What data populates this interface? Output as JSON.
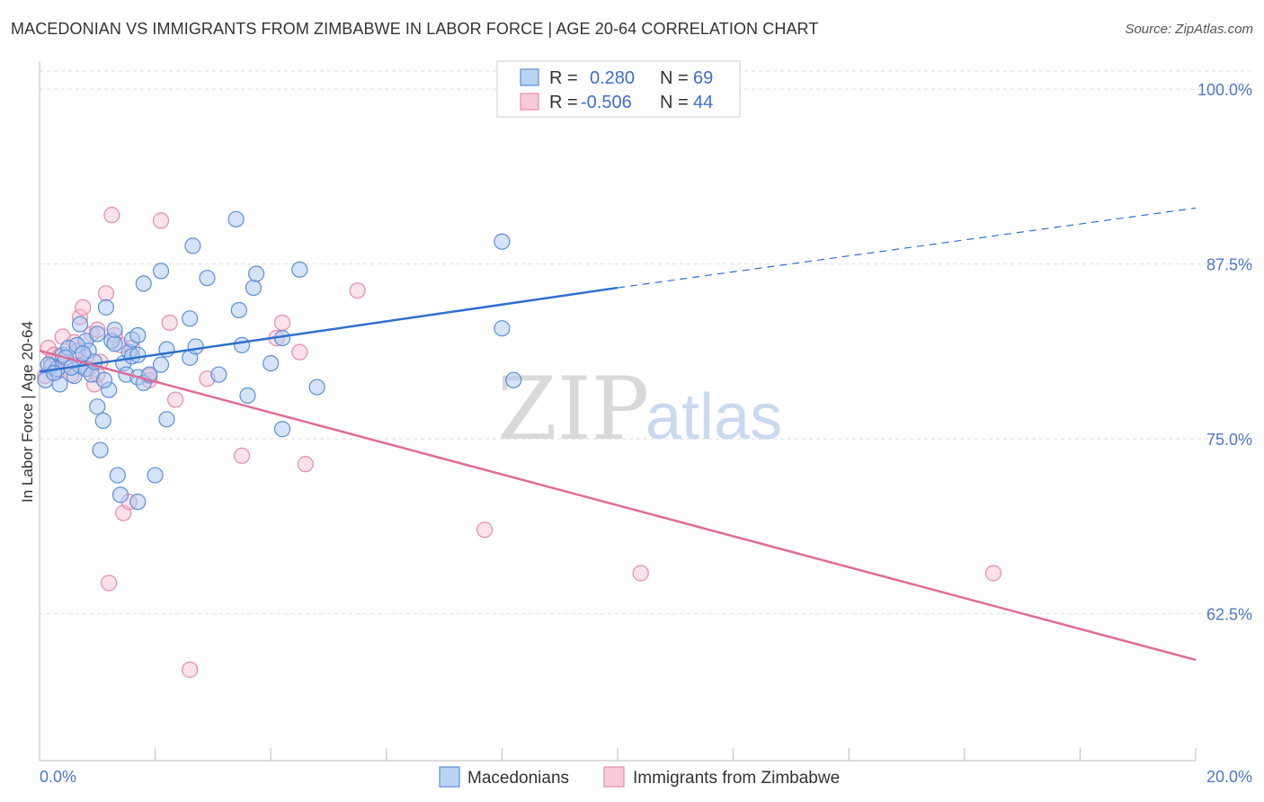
{
  "title": "MACEDONIAN VS IMMIGRANTS FROM ZIMBABWE IN LABOR FORCE | AGE 20-64 CORRELATION CHART",
  "source": "Source: ZipAtlas.com",
  "watermark": {
    "zip": "ZIP",
    "atlas": "atlas"
  },
  "colors": {
    "macedonians_fill": "#a9c8f0",
    "macedonians_stroke": "#5b8fd8",
    "macedonians_line": "#2f6fd0",
    "zimbabwe_fill": "#f5bdd0",
    "zimbabwe_stroke": "#e88aaa",
    "zimbabwe_line": "#e06a98",
    "tick_text": "#4a78c8",
    "grid": "#dddddd"
  },
  "legend": {
    "rows": [
      {
        "r_label": "R =",
        "r_value": "0.280",
        "n_label": "N =",
        "n_value": "69"
      },
      {
        "r_label": "R =",
        "r_value": "-0.506",
        "n_label": "N =",
        "n_value": "44"
      }
    ]
  },
  "bottom_legend": [
    "Macedonians",
    "Immigrants from Zimbabwe"
  ],
  "chart_data": {
    "type": "scatter",
    "title": "MACEDONIAN VS IMMIGRANTS FROM ZIMBABWE IN LABOR FORCE | AGE 20-64 CORRELATION CHART",
    "ylabel": "In Labor Force | Age 20-64",
    "xlabel": "",
    "xlim": [
      0,
      20
    ],
    "ylim": [
      52,
      102
    ],
    "x_tick_labels": [
      "0.0%",
      "20.0%"
    ],
    "y_ticks": [
      62.5,
      75.0,
      87.5,
      100.0
    ],
    "y_tick_labels": [
      "62.5%",
      "75.0%",
      "87.5%",
      "100.0%"
    ],
    "grid": true,
    "legend_position": "top-center",
    "series": [
      {
        "name": "Macedonians",
        "R": 0.28,
        "N": 69,
        "trend": {
          "x0": 0,
          "y0": 79.8,
          "x1": 10,
          "y1": 85.8,
          "dashed_to_x": 20,
          "dashed_to_y": 91.5
        },
        "points": [
          [
            0.1,
            79.2
          ],
          [
            0.2,
            80.2
          ],
          [
            0.3,
            80.0
          ],
          [
            0.35,
            78.9
          ],
          [
            0.4,
            81.0
          ],
          [
            0.5,
            81.5
          ],
          [
            0.6,
            79.5
          ],
          [
            0.7,
            80.2
          ],
          [
            0.7,
            83.2
          ],
          [
            0.8,
            82.0
          ],
          [
            0.8,
            80.0
          ],
          [
            0.85,
            81.3
          ],
          [
            0.9,
            79.6
          ],
          [
            1.0,
            82.5
          ],
          [
            1.0,
            77.3
          ],
          [
            1.05,
            74.2
          ],
          [
            1.1,
            76.3
          ],
          [
            1.15,
            84.4
          ],
          [
            1.2,
            78.5
          ],
          [
            1.25,
            82.0
          ],
          [
            1.3,
            81.8
          ],
          [
            1.3,
            82.8
          ],
          [
            1.35,
            72.4
          ],
          [
            1.4,
            71.0
          ],
          [
            1.45,
            80.4
          ],
          [
            1.5,
            79.6
          ],
          [
            1.55,
            81.2
          ],
          [
            1.6,
            80.9
          ],
          [
            1.6,
            82.1
          ],
          [
            1.7,
            79.4
          ],
          [
            1.7,
            70.5
          ],
          [
            1.7,
            81.0
          ],
          [
            1.7,
            82.4
          ],
          [
            1.8,
            86.1
          ],
          [
            1.8,
            79.0
          ],
          [
            1.9,
            79.6
          ],
          [
            2.0,
            72.4
          ],
          [
            2.1,
            80.3
          ],
          [
            2.1,
            87.0
          ],
          [
            2.2,
            81.4
          ],
          [
            2.2,
            76.4
          ],
          [
            2.6,
            83.6
          ],
          [
            2.6,
            80.8
          ],
          [
            2.65,
            88.8
          ],
          [
            2.7,
            81.6
          ],
          [
            2.9,
            86.5
          ],
          [
            3.1,
            79.6
          ],
          [
            3.4,
            90.7
          ],
          [
            3.45,
            84.2
          ],
          [
            3.5,
            81.7
          ],
          [
            3.6,
            78.1
          ],
          [
            3.7,
            85.8
          ],
          [
            3.75,
            86.8
          ],
          [
            4.0,
            80.4
          ],
          [
            4.2,
            75.7
          ],
          [
            4.2,
            82.2
          ],
          [
            4.5,
            87.1
          ],
          [
            4.8,
            78.7
          ],
          [
            8.0,
            89.1
          ],
          [
            8.0,
            82.9
          ],
          [
            8.2,
            79.2
          ],
          [
            0.15,
            80.3
          ],
          [
            0.45,
            80.8
          ],
          [
            0.55,
            80.1
          ],
          [
            0.65,
            81.7
          ],
          [
            0.95,
            80.5
          ],
          [
            1.12,
            79.2
          ],
          [
            0.25,
            79.7
          ],
          [
            0.75,
            81.1
          ]
        ]
      },
      {
        "name": "Immigrants from Zimbabwe",
        "R": -0.506,
        "N": 44,
        "trend": {
          "x0": 0,
          "y0": 81.3,
          "x1": 20,
          "y1": 59.2
        },
        "points": [
          [
            0.1,
            79.5
          ],
          [
            0.15,
            81.5
          ],
          [
            0.2,
            80.5
          ],
          [
            0.25,
            81.0
          ],
          [
            0.3,
            79.8
          ],
          [
            0.4,
            82.3
          ],
          [
            0.5,
            80.3
          ],
          [
            0.6,
            81.9
          ],
          [
            0.7,
            83.7
          ],
          [
            0.75,
            84.4
          ],
          [
            0.8,
            80.8
          ],
          [
            0.85,
            80.0
          ],
          [
            0.9,
            82.5
          ],
          [
            0.95,
            78.9
          ],
          [
            1.0,
            82.8
          ],
          [
            1.05,
            80.5
          ],
          [
            1.15,
            85.4
          ],
          [
            1.2,
            64.7
          ],
          [
            1.25,
            91.0
          ],
          [
            1.3,
            82.4
          ],
          [
            1.4,
            81.7
          ],
          [
            1.45,
            69.7
          ],
          [
            1.55,
            70.5
          ],
          [
            1.6,
            81.5
          ],
          [
            1.9,
            79.2
          ],
          [
            1.9,
            79.5
          ],
          [
            2.1,
            90.6
          ],
          [
            2.25,
            83.3
          ],
          [
            2.35,
            77.8
          ],
          [
            2.6,
            58.5
          ],
          [
            2.9,
            79.3
          ],
          [
            3.5,
            73.8
          ],
          [
            4.1,
            82.2
          ],
          [
            4.2,
            83.3
          ],
          [
            4.5,
            81.2
          ],
          [
            4.6,
            73.2
          ],
          [
            5.5,
            85.6
          ],
          [
            7.7,
            68.5
          ],
          [
            10.4,
            65.4
          ],
          [
            16.5,
            65.4
          ],
          [
            0.35,
            80.9
          ],
          [
            0.55,
            79.6
          ],
          [
            0.65,
            81.3
          ],
          [
            1.0,
            79.6
          ]
        ]
      }
    ]
  }
}
